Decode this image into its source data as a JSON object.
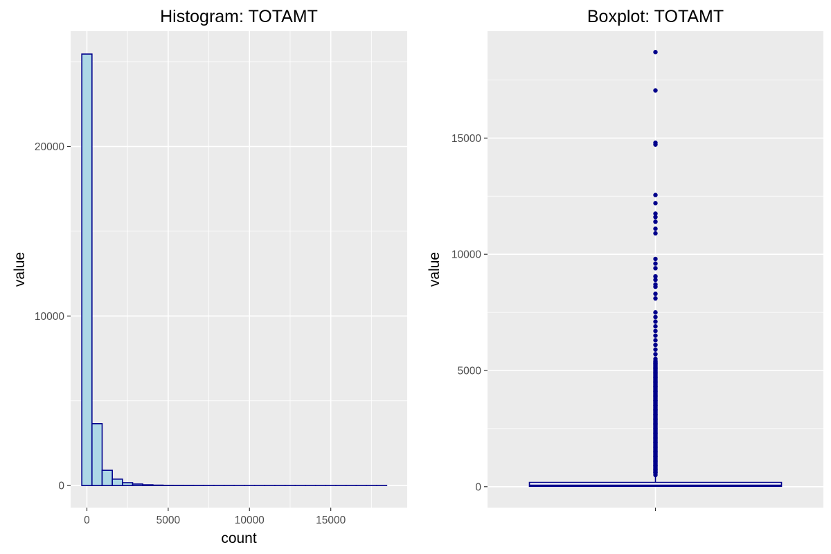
{
  "colors": {
    "panel_bg": "#ebebeb",
    "grid": "#ffffff",
    "bar_fill": "#add8e6",
    "bar_stroke": "#00008b",
    "point": "#00008b",
    "tick_text": "#4d4d4d",
    "tick_mark": "#333333"
  },
  "chart_data": [
    {
      "type": "bar",
      "title": "Histogram: TOTAMT",
      "xlabel": "count",
      "ylabel": "value",
      "xlim": [
        -1000,
        19700
      ],
      "ylim": [
        -1300,
        26800
      ],
      "xticks": [
        0,
        5000,
        10000,
        15000
      ],
      "xtick_labels": [
        "0",
        "5000",
        "10000",
        "15000"
      ],
      "yticks": [
        0,
        10000,
        20000
      ],
      "ytick_labels": [
        "0",
        "10000",
        "20000"
      ],
      "grid": true,
      "bin_width": 625,
      "bin_start": -312.5,
      "values": [
        25450,
        3650,
        900,
        380,
        170,
        90,
        45,
        25,
        14,
        9,
        6,
        4,
        3,
        2,
        2,
        1,
        1,
        1,
        1,
        1,
        1,
        1,
        1,
        1,
        1,
        1,
        1,
        1,
        1,
        1
      ]
    },
    {
      "type": "box",
      "title": "Boxplot: TOTAMT",
      "ylabel": "value",
      "xtick_labels": [
        ""
      ],
      "ylim": [
        -900,
        19600
      ],
      "yticks": [
        0,
        5000,
        10000,
        15000
      ],
      "ytick_labels": [
        "0",
        "5000",
        "10000",
        "15000"
      ],
      "grid": true,
      "box": {
        "q1": 15,
        "median": 45,
        "q3": 185,
        "whisker_low": 0,
        "whisker_high": 420
      },
      "outliers": [
        18700,
        17050,
        14800,
        14720,
        12550,
        12200,
        11750,
        11600,
        11400,
        11100,
        10900,
        9800,
        9600,
        9400,
        9050,
        8900,
        8700,
        8600,
        8300,
        8100,
        7500,
        7300,
        7100,
        6900,
        6700,
        6500,
        6300,
        6100,
        5900,
        5700,
        5500,
        5300,
        5100,
        4900,
        4700,
        4500,
        4300,
        4100,
        3900,
        3700,
        3500,
        3300,
        3100,
        2900,
        2700,
        2500,
        2300,
        2100,
        1900,
        1700,
        1500,
        1300,
        1100,
        900,
        750,
        600,
        500
      ]
    }
  ]
}
